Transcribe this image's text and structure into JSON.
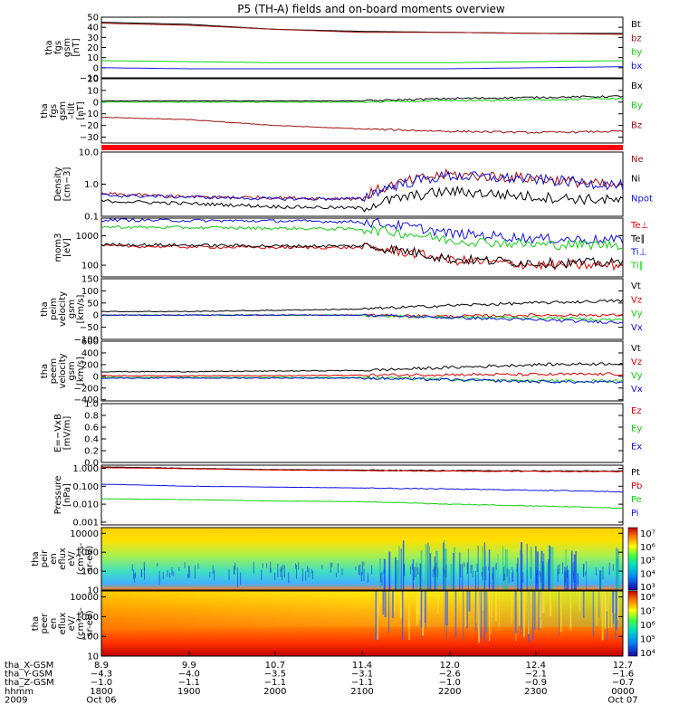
{
  "title": "P5 (TH-A) fields and on-board moments overview",
  "colors": {
    "black": "#000000",
    "red": "#e00000",
    "darkred": "#a01010",
    "green": "#10d010",
    "blue": "#1010e0"
  },
  "panels": [
    {
      "id": "fgs",
      "ylabel": [
        "tha",
        "fgs",
        "gsm",
        "[nT]"
      ],
      "ticks": [
        "50",
        "40",
        "30",
        "20",
        "10",
        "0",
        "−10"
      ],
      "legend": [
        {
          "label": "Bt",
          "color": "#000000"
        },
        {
          "label": "bz",
          "color": "#a01010"
        },
        {
          "label": "by",
          "color": "#10d010"
        },
        {
          "label": "bx",
          "color": "#1010e0"
        }
      ]
    },
    {
      "id": "fgs-zoom",
      "ylabel": [
        "tha",
        "fgs",
        "gsm",
        "–tilt",
        "[nT]"
      ],
      "ticks": [
        "20",
        "10",
        "0",
        "−10",
        "−20",
        "−30"
      ],
      "legend": [
        {
          "label": "Bx",
          "color": "#000000"
        },
        {
          "label": "By",
          "color": "#10d010"
        },
        {
          "label": "Bz",
          "color": "#a01010"
        }
      ]
    },
    {
      "id": "density",
      "ylabel": [
        "Density",
        "[cm−3]"
      ],
      "ticks": [
        "10.0",
        "1.0",
        "0.1"
      ],
      "legend": [
        {
          "label": "Ne",
          "color": "#a01010"
        },
        {
          "label": "Ni",
          "color": "#000000"
        },
        {
          "label": "Npot",
          "color": "#1010e0"
        }
      ]
    },
    {
      "id": "temperature",
      "ylabel": [
        "mom3",
        "[eV]"
      ],
      "ticks": [
        "1000",
        "100"
      ],
      "legend": [
        {
          "label": "Te⊥",
          "color": "#e00000"
        },
        {
          "label": "Te∥",
          "color": "#000000"
        },
        {
          "label": "Ti⊥",
          "color": "#1010e0"
        },
        {
          "label": "Ti∥",
          "color": "#10d010"
        }
      ]
    },
    {
      "id": "ion-velocity",
      "ylabel": [
        "tha",
        "peim",
        "velocity",
        "gsm",
        "[km/s]"
      ],
      "ticks": [
        "150",
        "100",
        "50",
        "0",
        "−50",
        "−100"
      ],
      "legend": [
        {
          "label": "Vt",
          "color": "#000000"
        },
        {
          "label": "Vz",
          "color": "#e00000"
        },
        {
          "label": "Vy",
          "color": "#10d010"
        },
        {
          "label": "Vx",
          "color": "#1010e0"
        }
      ]
    },
    {
      "id": "electron-velocity",
      "ylabel": [
        "tha",
        "peem",
        "velocity",
        "gsm",
        "[km/s]"
      ],
      "ticks": [
        "600",
        "400",
        "200",
        "0",
        "−200",
        "−400"
      ],
      "legend": [
        {
          "label": "Vt",
          "color": "#000000"
        },
        {
          "label": "Vz",
          "color": "#e00000"
        },
        {
          "label": "Vy",
          "color": "#10d010"
        },
        {
          "label": "Vx",
          "color": "#1010e0"
        }
      ]
    },
    {
      "id": "efield",
      "ylabel": [
        "E=−VxB",
        "[mV/m]"
      ],
      "ticks": [
        "1.0",
        "0.8",
        "0.6",
        "0.4",
        "0.2",
        "0.0"
      ],
      "legend": [
        {
          "label": "Ez",
          "color": "#e00000"
        },
        {
          "label": "Ey",
          "color": "#10d010"
        },
        {
          "label": "Ex",
          "color": "#1010e0"
        }
      ]
    },
    {
      "id": "pressure",
      "ylabel": [
        "Pressure",
        "[nPa]"
      ],
      "ticks": [
        "1.000",
        "0.100",
        "0.010",
        "0.001"
      ],
      "legend": [
        {
          "label": "Pt",
          "color": "#000000"
        },
        {
          "label": "Pb",
          "color": "#e00000"
        },
        {
          "label": "Pe",
          "color": "#10d010"
        },
        {
          "label": "Pi",
          "color": "#1010e0"
        }
      ]
    },
    {
      "id": "ion-spectrogram",
      "ylabel": [
        "tha",
        "peir",
        "en",
        "eflux",
        "eV/",
        "(cm²-s-",
        "sr-eV)"
      ],
      "ticks": [
        "10000",
        "1000",
        "100",
        "10"
      ],
      "colorbar": [
        "10⁷",
        "10⁶",
        "10⁵",
        "10⁴",
        "10³"
      ]
    },
    {
      "id": "electron-spectrogram",
      "ylabel": [
        "tha",
        "peer",
        "en",
        "eflux",
        "eV/",
        "(cm²-s-",
        "sr-eV)"
      ],
      "ticks": [
        "10000",
        "1000",
        "100",
        "10"
      ],
      "colorbar": [
        "10⁸",
        "10⁷",
        "10⁶",
        "10⁵",
        "10⁴"
      ]
    }
  ],
  "bottom": {
    "rows": [
      {
        "label": "tha_X-GSM",
        "values": [
          "8.9",
          "9.9",
          "10.7",
          "11.4",
          "12.0",
          "12.4",
          "12.7"
        ]
      },
      {
        "label": "tha_Y-GSM",
        "values": [
          "−4.3",
          "−4.0",
          "−3.5",
          "−3.1",
          "−2.6",
          "−2.1",
          "−1.6"
        ]
      },
      {
        "label": "tha_Z-GSM",
        "values": [
          "−1.0",
          "−1.1",
          "−1.1",
          "−1.1",
          "−1.0",
          "−0.9",
          "−0.7"
        ]
      },
      {
        "label": "hhmm",
        "values": [
          "1800",
          "1900",
          "2000",
          "2100",
          "2200",
          "2300",
          "0000"
        ]
      },
      {
        "label": "2009",
        "values": [
          "Oct 06",
          "",
          "",
          "",
          "",
          "",
          "Oct 07"
        ]
      }
    ]
  },
  "chart_data": [
    {
      "type": "line",
      "panel": "fgs",
      "ylim": [
        -10,
        50
      ],
      "x": [
        "1800",
        "1900",
        "2000",
        "2100",
        "2200",
        "2300",
        "0000"
      ],
      "series": [
        {
          "name": "Bt",
          "values": [
            45,
            43,
            38,
            36,
            35,
            34,
            34
          ]
        },
        {
          "name": "bz",
          "values": [
            44,
            42,
            38,
            35,
            35,
            34,
            33
          ]
        },
        {
          "name": "by",
          "values": [
            7,
            6,
            5,
            5,
            5,
            6,
            7
          ]
        },
        {
          "name": "bx",
          "values": [
            0,
            -1,
            -1,
            -1,
            -1,
            0,
            1
          ]
        }
      ]
    },
    {
      "type": "line",
      "panel": "fgs-zoom",
      "ylim": [
        -35,
        20
      ],
      "x": [
        "1800",
        "1900",
        "2000",
        "2100",
        "2200",
        "2300",
        "0000"
      ],
      "series": [
        {
          "name": "Bx",
          "values": [
            1,
            1,
            1,
            1,
            3,
            4,
            5
          ]
        },
        {
          "name": "By",
          "values": [
            0,
            0,
            0,
            0,
            1,
            2,
            3
          ]
        },
        {
          "name": "Bz",
          "values": [
            -13,
            -15,
            -20,
            -23,
            -25,
            -26,
            -25
          ]
        }
      ]
    },
    {
      "type": "line",
      "panel": "density",
      "log": true,
      "ylim": [
        0.1,
        10
      ],
      "x": [
        "1800",
        "1900",
        "2000",
        "2100",
        "2200",
        "2300",
        "0000"
      ],
      "series": [
        {
          "name": "Ne",
          "values": [
            0.5,
            0.4,
            0.38,
            0.35,
            2,
            1.5,
            0.8
          ]
        },
        {
          "name": "Ni",
          "values": [
            0.3,
            0.25,
            0.2,
            0.18,
            0.6,
            0.4,
            0.3
          ]
        },
        {
          "name": "Npot",
          "values": [
            0.45,
            0.4,
            0.35,
            0.35,
            1.8,
            1.4,
            0.9
          ]
        }
      ]
    },
    {
      "type": "line",
      "panel": "temperature",
      "log": true,
      "ylim": [
        40,
        4000
      ],
      "x": [
        "1800",
        "1900",
        "2000",
        "2100",
        "2200",
        "2300",
        "0000"
      ],
      "series": [
        {
          "name": "Te⊥",
          "values": [
            450,
            420,
            400,
            400,
            150,
            100,
            100
          ]
        },
        {
          "name": "Te∥",
          "values": [
            500,
            480,
            450,
            450,
            160,
            120,
            120
          ]
        },
        {
          "name": "Ti⊥",
          "values": [
            3500,
            3300,
            3200,
            3000,
            1200,
            800,
            700
          ]
        },
        {
          "name": "Ti∥",
          "values": [
            2000,
            1900,
            1800,
            1700,
            700,
            500,
            500
          ]
        }
      ]
    },
    {
      "type": "line",
      "panel": "ion-velocity",
      "ylim": [
        -100,
        150
      ],
      "x": [
        "1800",
        "1900",
        "2000",
        "2100",
        "2200",
        "2300",
        "0000"
      ],
      "series": [
        {
          "name": "Vt",
          "values": [
            15,
            15,
            20,
            25,
            40,
            50,
            60
          ]
        },
        {
          "name": "Vz",
          "values": [
            0,
            0,
            0,
            0,
            -5,
            0,
            0
          ]
        },
        {
          "name": "Vy",
          "values": [
            0,
            0,
            0,
            0,
            -10,
            -10,
            -20
          ]
        },
        {
          "name": "Vx",
          "values": [
            0,
            0,
            0,
            0,
            -10,
            -20,
            -30
          ]
        }
      ]
    },
    {
      "type": "line",
      "panel": "electron-velocity",
      "ylim": [
        -400,
        600
      ],
      "x": [
        "1800",
        "1900",
        "2000",
        "2100",
        "2200",
        "2300",
        "0000"
      ],
      "series": [
        {
          "name": "Vt",
          "values": [
            80,
            80,
            90,
            100,
            150,
            200,
            220
          ]
        },
        {
          "name": "Vz",
          "values": [
            10,
            10,
            10,
            20,
            30,
            30,
            40
          ]
        },
        {
          "name": "Vy",
          "values": [
            -20,
            -20,
            -20,
            -20,
            -50,
            -80,
            -80
          ]
        },
        {
          "name": "Vx",
          "values": [
            -30,
            -30,
            -30,
            -30,
            -60,
            -90,
            -100
          ]
        }
      ]
    },
    {
      "type": "line",
      "panel": "efield",
      "ylim": [
        0,
        1
      ],
      "series": []
    },
    {
      "type": "line",
      "panel": "pressure",
      "log": true,
      "ylim": [
        0.001,
        1
      ],
      "x": [
        "1800",
        "1900",
        "2000",
        "2100",
        "2200",
        "2300",
        "0000"
      ],
      "series": [
        {
          "name": "Pt",
          "values": [
            1.2,
            1.0,
            0.85,
            0.8,
            0.75,
            0.72,
            0.7
          ]
        },
        {
          "name": "Pb",
          "values": [
            1.1,
            0.95,
            0.8,
            0.75,
            0.7,
            0.68,
            0.66
          ]
        },
        {
          "name": "Pe",
          "values": [
            0.02,
            0.018,
            0.015,
            0.014,
            0.01,
            0.008,
            0.006
          ]
        },
        {
          "name": "Pi",
          "values": [
            0.13,
            0.1,
            0.09,
            0.08,
            0.07,
            0.06,
            0.05
          ]
        }
      ]
    },
    {
      "type": "heatmap",
      "panel": "ion-spectrogram",
      "ylim": [
        10,
        20000
      ],
      "log": true
    },
    {
      "type": "heatmap",
      "panel": "electron-spectrogram",
      "ylim": [
        10,
        20000
      ],
      "log": true
    }
  ]
}
